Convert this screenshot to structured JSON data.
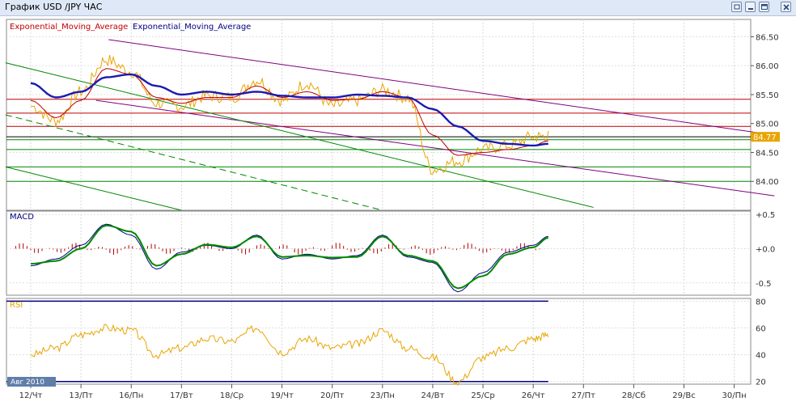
{
  "window": {
    "title": "График USD /JPY  ЧАС",
    "buttons": [
      "restore-icon",
      "minimize-icon",
      "maximize-icon",
      "close-icon"
    ]
  },
  "legend": {
    "indicator1": "Exponential_Moving_Average",
    "indicator2": "Exponential_Moving_Average",
    "colors": {
      "indicator1": "#c00000",
      "indicator2": "#000080"
    }
  },
  "period_label": "Авг 2010",
  "chart_data": [
    {
      "type": "line",
      "name": "price",
      "x_labels": [
        "12/Чт",
        "13/Пт",
        "16/Пн",
        "17/Вт",
        "18/Ср",
        "19/Чт",
        "20/Пт",
        "23/Пн",
        "24/Вт",
        "25/Ср",
        "26/Чт",
        "27/Пт",
        "28/Сб",
        "29/Вс",
        "30/Пн"
      ],
      "y_ticks": [
        "86.50",
        "86.00",
        "85.50",
        "85.00",
        "84.50",
        "84.00"
      ],
      "ylim": [
        83.5,
        86.8
      ],
      "current_price": "84.77",
      "colors": {
        "price": "#e8a500",
        "ema_fast": "#c00000",
        "ema_slow": "#1a1ab0",
        "resistance": "#c00000",
        "support": "#008800",
        "trend": "#800080"
      },
      "series": [
        {
          "values_x": [
            0,
            0.5,
            1,
            1.5,
            2,
            2.5,
            3,
            3.5,
            4,
            4.5,
            5,
            5.5,
            6,
            6.5,
            7,
            7.5,
            8,
            8.5,
            9,
            9.5,
            10,
            10.3
          ],
          "values": [
            85.3,
            85.05,
            85.55,
            86.1,
            85.9,
            85.35,
            85.3,
            85.48,
            85.45,
            85.75,
            85.4,
            85.7,
            85.3,
            85.4,
            85.58,
            85.45,
            84.2,
            84.35,
            84.55,
            84.62,
            84.77,
            84.78
          ]
        },
        {
          "values_x": [
            0,
            0.5,
            1,
            1.5,
            2,
            2.5,
            3,
            3.5,
            4,
            4.5,
            5,
            5.5,
            6,
            6.5,
            7,
            7.5,
            8,
            8.5,
            9,
            9.5,
            10,
            10.3
          ],
          "values": [
            85.4,
            85.1,
            85.4,
            85.95,
            85.85,
            85.45,
            85.35,
            85.45,
            85.45,
            85.65,
            85.45,
            85.55,
            85.4,
            85.42,
            85.55,
            85.45,
            84.8,
            84.45,
            84.5,
            84.55,
            84.62,
            84.7
          ]
        },
        {
          "values_x": [
            0,
            0.5,
            1,
            1.5,
            2,
            2.5,
            3,
            3.5,
            4,
            4.5,
            5,
            5.5,
            6,
            6.5,
            7,
            7.5,
            8,
            8.5,
            9,
            9.5,
            10,
            10.3
          ],
          "values": [
            85.7,
            85.45,
            85.55,
            85.8,
            85.85,
            85.65,
            85.5,
            85.55,
            85.5,
            85.55,
            85.48,
            85.45,
            85.45,
            85.5,
            85.48,
            85.45,
            85.25,
            84.95,
            84.7,
            84.65,
            84.62,
            84.65
          ]
        }
      ],
      "horizontal_levels": {
        "resistance": [
          85.42,
          85.18,
          84.95
        ],
        "black": [
          84.77
        ],
        "support": [
          84.72,
          84.55,
          84.25,
          84.0
        ]
      }
    },
    {
      "type": "line",
      "name": "MACD",
      "title": "MACD",
      "y_ticks": [
        "+0.5",
        "+0.0",
        "-0.5"
      ],
      "ylim": [
        -0.68,
        0.55
      ],
      "series": [
        {
          "values_x": [
            0,
            0.5,
            1,
            1.5,
            2,
            2.5,
            3,
            3.5,
            4,
            4.5,
            5,
            5.5,
            6,
            6.5,
            7,
            7.5,
            8,
            8.5,
            9,
            9.5,
            10,
            10.3
          ],
          "values": [
            -0.25,
            -0.15,
            0.05,
            0.36,
            0.2,
            -0.3,
            -0.05,
            0.05,
            0.0,
            0.2,
            -0.15,
            -0.08,
            -0.15,
            -0.1,
            0.2,
            -0.12,
            -0.2,
            -0.63,
            -0.35,
            -0.05,
            0.05,
            0.18
          ]
        },
        {
          "values_x": [
            0,
            0.5,
            1,
            1.5,
            2,
            2.5,
            3,
            3.5,
            4,
            4.5,
            5,
            5.5,
            6,
            6.5,
            7,
            7.5,
            8,
            8.5,
            9,
            9.5,
            10,
            10.3
          ],
          "values": [
            -0.22,
            -0.18,
            0.0,
            0.34,
            0.25,
            -0.25,
            -0.08,
            0.06,
            0.02,
            0.18,
            -0.12,
            -0.1,
            -0.13,
            -0.12,
            0.18,
            -0.1,
            -0.18,
            -0.58,
            -0.4,
            -0.08,
            0.02,
            0.16
          ]
        }
      ]
    },
    {
      "type": "line",
      "name": "RSI",
      "title": "RSI",
      "y_ticks": [
        "80",
        "60",
        "40",
        "20"
      ],
      "ylim": [
        18,
        82
      ],
      "levels": [
        80,
        20
      ],
      "series": [
        {
          "values_x": [
            0,
            0.5,
            1,
            1.5,
            2,
            2.5,
            3,
            3.5,
            4,
            4.5,
            5,
            5.5,
            6,
            6.5,
            7,
            7.5,
            8,
            8.5,
            9,
            9.5,
            10,
            10.3
          ],
          "values": [
            40,
            45,
            55,
            60,
            58,
            40,
            45,
            52,
            50,
            60,
            42,
            52,
            45,
            48,
            58,
            45,
            38,
            20,
            38,
            45,
            52,
            55
          ]
        }
      ]
    }
  ]
}
